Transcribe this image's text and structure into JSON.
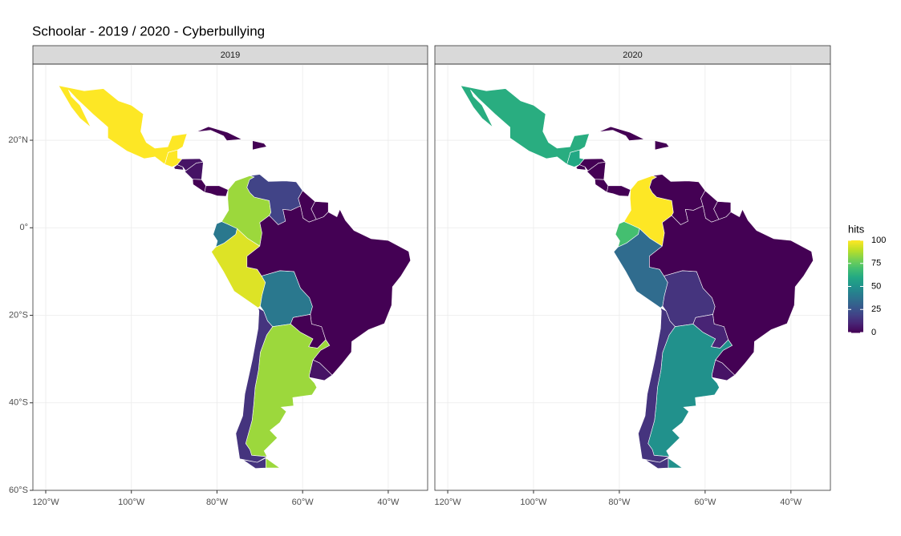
{
  "chart_data": {
    "type": "choropleth",
    "title": "Schoolar - 2019 / 2020 - Cyberbullying",
    "colormap": "viridis",
    "grid": true,
    "facets": [
      {
        "label": "2019",
        "values": [
          100,
          100,
          5,
          5,
          5,
          0,
          0,
          0,
          0,
          85,
          20,
          0,
          0,
          40,
          95,
          40,
          0,
          0,
          5,
          85,
          15
        ]
      },
      {
        "label": "2020",
        "values": [
          62,
          60,
          0,
          0,
          0,
          0,
          0,
          0,
          0,
          100,
          0,
          0,
          0,
          70,
          35,
          15,
          0,
          10,
          5,
          50,
          15
        ]
      }
    ],
    "xlim": [
      -123,
      -30.8
    ],
    "ylim": [
      -60,
      37.4
    ],
    "xticks": [
      {
        "value": -120,
        "label": "120°W"
      },
      {
        "value": -100,
        "label": "100°W"
      },
      {
        "value": -80,
        "label": "80°W"
      },
      {
        "value": -60,
        "label": "60°W"
      },
      {
        "value": -40,
        "label": "40°W"
      }
    ],
    "yticks": [
      {
        "value": 20,
        "label": "20°N"
      },
      {
        "value": 0,
        "label": "0°"
      },
      {
        "value": -20,
        "label": "20°S"
      },
      {
        "value": -40,
        "label": "40°S"
      },
      {
        "value": -60,
        "label": "60°S"
      }
    ],
    "legend": {
      "title": "hits",
      "clim": [
        0,
        100
      ],
      "ticks": [
        0,
        25,
        50,
        75,
        100
      ]
    }
  }
}
